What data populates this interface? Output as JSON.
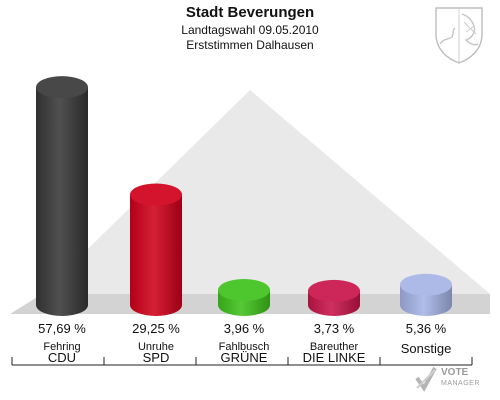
{
  "header": {
    "title": "Stadt Beverungen",
    "subtitle": "Landtagswahl 09.05.2010",
    "subtitle2": "Erststimmen Dalhausen"
  },
  "badge": {
    "line1": "VOTE",
    "line2": "MANAGER"
  },
  "colors": {
    "CDU": "#383838",
    "SPD": "#d0001a",
    "GRUENE": "#3ec21b",
    "LINKE": "#c8144a",
    "Sonstige": "#a6b4e6"
  },
  "chart_data": {
    "type": "bar",
    "title": "Stadt Beverungen",
    "ylim": [
      0,
      60
    ],
    "categories": [
      "CDU",
      "SPD",
      "GRÜNE",
      "DIE LINKE",
      "Sonstige"
    ],
    "candidates": [
      "Fehring",
      "Unruhe",
      "Fahlbusch",
      "Bareuther",
      ""
    ],
    "values": [
      57.69,
      29.25,
      3.96,
      3.73,
      5.36
    ],
    "value_labels": [
      "57,69 %",
      "29,25 %",
      "3,96 %",
      "3,73 %",
      "5,36 %"
    ],
    "colors": [
      "#383838",
      "#d0001a",
      "#3ec21b",
      "#c8144a",
      "#a6b4e6"
    ]
  }
}
